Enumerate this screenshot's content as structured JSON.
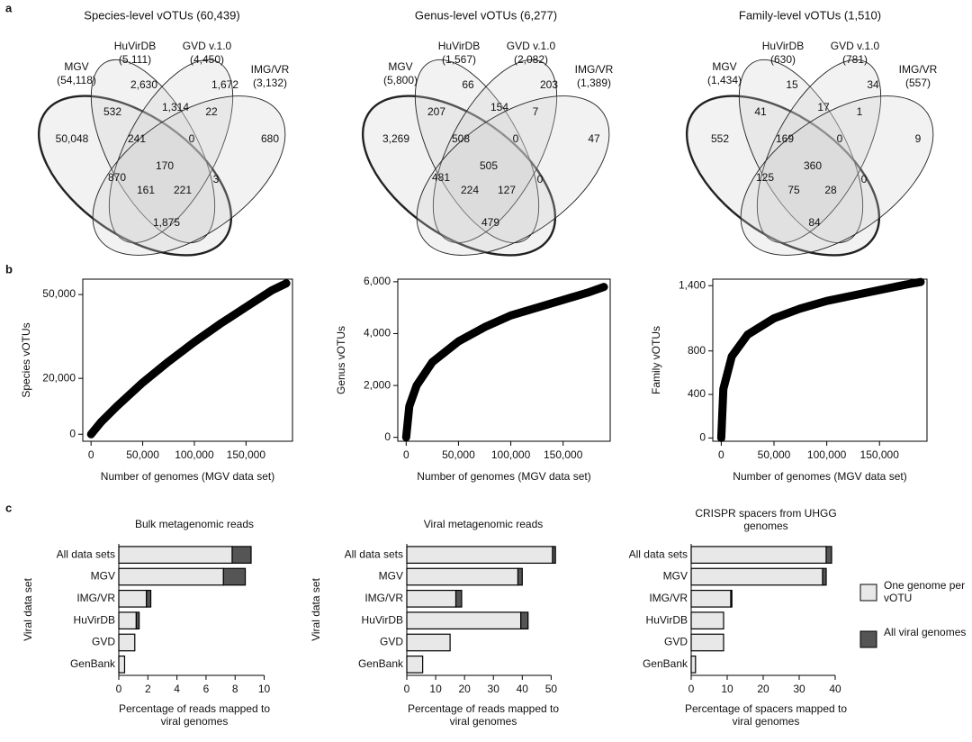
{
  "panel_labels": [
    "a",
    "b",
    "c"
  ],
  "chart_data": [
    {
      "type": "venn",
      "title": "Species-level vOTUs (60,439)",
      "sets": [
        {
          "name": "MGV",
          "size": "(54,118)"
        },
        {
          "name": "HuVirDB",
          "size": "(5,111)"
        },
        {
          "name": "GVD v.1.0",
          "size": "(4,450)"
        },
        {
          "name": "IMG/VR",
          "size": "(3,132)"
        }
      ],
      "values": [
        2630,
        1672,
        532,
        1314,
        22,
        50048,
        241,
        0,
        680,
        170,
        870,
        161,
        221,
        3,
        1875
      ],
      "value_labels": [
        "2,630",
        "1,672",
        "532",
        "1,314",
        "22",
        "50,048",
        "241",
        "0",
        "680",
        "170",
        "870",
        "161",
        "221",
        "3",
        "1,875"
      ]
    },
    {
      "type": "venn",
      "title": "Genus-level vOTUs (6,277)",
      "sets": [
        {
          "name": "MGV",
          "size": "(5,800)"
        },
        {
          "name": "HuVirDB",
          "size": "(1,567)"
        },
        {
          "name": "GVD v.1.0",
          "size": "(2,082)"
        },
        {
          "name": "IMG/VR",
          "size": "(1,389)"
        }
      ],
      "values": [
        66,
        203,
        207,
        154,
        7,
        3269,
        508,
        0,
        47,
        505,
        481,
        224,
        127,
        0,
        479
      ],
      "value_labels": [
        "66",
        "203",
        "207",
        "154",
        "7",
        "3,269",
        "508",
        "0",
        "47",
        "505",
        "481",
        "224",
        "127",
        "0",
        "479"
      ]
    },
    {
      "type": "venn",
      "title": "Family-level vOTUs (1,510)",
      "sets": [
        {
          "name": "MGV",
          "size": "(1,434)"
        },
        {
          "name": "HuVirDB",
          "size": "(630)"
        },
        {
          "name": "GVD v.1.0",
          "size": "(781)"
        },
        {
          "name": "IMG/VR",
          "size": "(557)"
        }
      ],
      "values": [
        15,
        34,
        41,
        17,
        1,
        552,
        169,
        0,
        9,
        360,
        125,
        75,
        28,
        0,
        84
      ]
    },
    {
      "type": "line",
      "xlabel": "Number of genomes (MGV data set)",
      "ylabel": "Species vOTUs",
      "color": "#000000",
      "x": [
        0,
        10000,
        25000,
        50000,
        75000,
        100000,
        125000,
        150000,
        175000,
        189000
      ],
      "values": [
        0,
        4500,
        10000,
        18500,
        26000,
        33000,
        39500,
        45500,
        51500,
        54000
      ],
      "xlim": [
        -8000,
        195000
      ],
      "ylim": [
        -2500,
        55500
      ],
      "xticks": [
        0,
        {
          "value": 50000,
          "label": "50,000"
        },
        {
          "value": 100000,
          "label": "100,000"
        },
        {
          "value": 150000,
          "label": "150,000"
        }
      ],
      "yticks": [
        0,
        {
          "value": 20000,
          "label": "20,000"
        },
        {
          "value": 50000,
          "label": "50,000"
        }
      ]
    },
    {
      "type": "line",
      "xlabel": "Number of genomes (MGV data set)",
      "ylabel": "Genus vOTUs",
      "color": "#000000",
      "x": [
        0,
        3000,
        10000,
        25000,
        50000,
        75000,
        100000,
        125000,
        150000,
        175000,
        189000
      ],
      "values": [
        0,
        1200,
        2000,
        2900,
        3700,
        4250,
        4700,
        5000,
        5300,
        5600,
        5800
      ],
      "xlim": [
        -8000,
        195000
      ],
      "ylim": [
        -150,
        6100
      ],
      "xticks": [
        0,
        {
          "value": 50000,
          "label": "50,000"
        },
        {
          "value": 100000,
          "label": "100,000"
        },
        {
          "value": 150000,
          "label": "150,000"
        }
      ],
      "yticks": [
        0,
        {
          "value": 2000,
          "label": "2,000"
        },
        {
          "value": 4000,
          "label": "4,000"
        },
        {
          "value": 6000,
          "label": "6,000"
        }
      ]
    },
    {
      "type": "line",
      "xlabel": "Number of genomes (MGV data set)",
      "ylabel": "Family vOTUs",
      "color": "#000000",
      "x": [
        0,
        2000,
        10000,
        25000,
        50000,
        75000,
        100000,
        125000,
        150000,
        175000,
        189000
      ],
      "values": [
        0,
        450,
        750,
        950,
        1100,
        1190,
        1260,
        1310,
        1360,
        1410,
        1434
      ],
      "xlim": [
        -8000,
        195000
      ],
      "ylim": [
        -30,
        1460
      ],
      "xticks": [
        0,
        {
          "value": 50000,
          "label": "50,000"
        },
        {
          "value": 100000,
          "label": "100,000"
        },
        {
          "value": 150000,
          "label": "150,000"
        }
      ],
      "yticks": [
        0,
        400,
        800,
        {
          "value": 1400,
          "label": "1,400"
        }
      ]
    },
    {
      "type": "bar",
      "orientation": "horizontal",
      "stacked": true,
      "title": "Bulk metagenomic reads",
      "xlabel": "Percentage of reads mapped to viral genomes",
      "ylabel": "Viral data set",
      "categories": [
        "All data sets",
        "MGV",
        "IMG/VR",
        "HuVirDB",
        "GVD",
        "GenBank"
      ],
      "series": [
        {
          "color": "#e8e8e8",
          "values": [
            7.8,
            7.2,
            1.9,
            1.2,
            1.1,
            0.4
          ]
        },
        {
          "color": "#555555",
          "values": [
            1.3,
            1.5,
            0.3,
            0.2,
            0,
            0
          ]
        }
      ],
      "xlim": [
        0,
        10.4
      ],
      "xticks": [
        0,
        2,
        4,
        6,
        8,
        10
      ]
    },
    {
      "type": "bar",
      "orientation": "horizontal",
      "stacked": true,
      "title": "Viral metagenomic reads",
      "xlabel": "Percentage of reads mapped to viral genomes",
      "ylabel": "Viral data set",
      "categories": [
        "All data sets",
        "MGV",
        "IMG/VR",
        "HuVirDB",
        "GVD",
        "GenBank"
      ],
      "series": [
        {
          "color": "#e8e8e8",
          "values": [
            50.5,
            38.5,
            17,
            39.5,
            15,
            5.5
          ]
        },
        {
          "color": "#555555",
          "values": [
            1,
            1.5,
            2,
            2.5,
            0,
            0
          ]
        }
      ],
      "xlim": [
        0,
        53
      ],
      "xticks": [
        0,
        10,
        20,
        30,
        40,
        50
      ]
    },
    {
      "type": "bar",
      "orientation": "horizontal",
      "stacked": true,
      "title": "CRISPR spacers from UHGG genomes",
      "xlabel": "Percentage of spacers mapped to viral genomes",
      "categories": [
        "All data sets",
        "MGV",
        "IMG/VR",
        "HuVirDB",
        "GVD",
        "GenBank"
      ],
      "series": [
        {
          "name": "One genome per vOTU",
          "color": "#e8e8e8",
          "values": [
            37.5,
            36.5,
            11,
            9,
            9,
            1.2
          ]
        },
        {
          "name": "All viral genomes",
          "color": "#555555",
          "values": [
            1.5,
            1,
            0.3,
            0,
            0,
            0
          ]
        }
      ],
      "xlim": [
        0,
        41.5
      ],
      "xticks": [
        0,
        10,
        20,
        30,
        40
      ],
      "legend": "right"
    }
  ]
}
